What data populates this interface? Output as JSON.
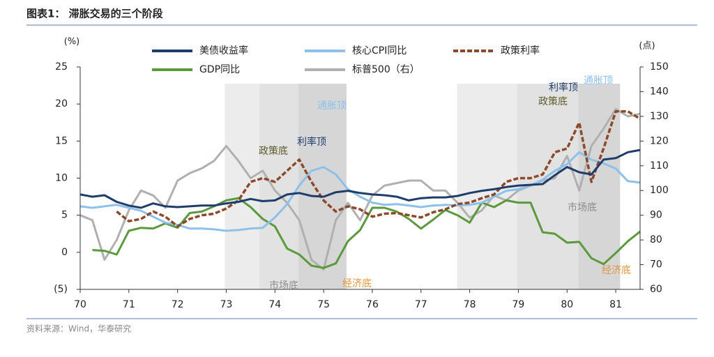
{
  "chart_data": {
    "type": "line",
    "title": "图表1：  滞胀交易的三个阶段",
    "source": "资料来源：Wind，华泰研究",
    "y_axis_label": "(%)",
    "y2_axis_label": "(点)",
    "x": [
      70,
      70.25,
      70.5,
      70.75,
      71,
      71.25,
      71.5,
      71.75,
      72,
      72.25,
      72.5,
      72.75,
      73,
      73.25,
      73.5,
      73.75,
      74,
      74.25,
      74.5,
      74.75,
      75,
      75.25,
      75.5,
      75.75,
      76,
      76.25,
      76.5,
      76.75,
      77,
      77.25,
      77.5,
      77.75,
      78,
      78.25,
      78.5,
      78.75,
      79,
      79.25,
      79.5,
      79.75,
      80,
      80.25,
      80.5,
      80.75,
      81,
      81.25,
      81.5
    ],
    "xlim": [
      70,
      81.5
    ],
    "xticks": [
      70,
      71,
      72,
      73,
      74,
      75,
      76,
      77,
      78,
      79,
      80,
      81
    ],
    "ylim": [
      -5,
      25
    ],
    "yticks": [
      {
        "value": -5,
        "label": "(5)"
      },
      0,
      5,
      10,
      15,
      20,
      25
    ],
    "y2lim": [
      60,
      150
    ],
    "y2ticks": [
      60,
      70,
      80,
      90,
      100,
      110,
      120,
      130,
      140,
      150
    ],
    "shaded_periods": [
      {
        "start": 72.97,
        "end": 73.68,
        "color": "#ececec"
      },
      {
        "start": 73.68,
        "end": 74.48,
        "color": "#e2e2e2"
      },
      {
        "start": 74.48,
        "end": 75.47,
        "color": "#d6d6d6"
      },
      {
        "start": 77.74,
        "end": 78.97,
        "color": "#ececec"
      },
      {
        "start": 78.97,
        "end": 80.23,
        "color": "#e2e2e2"
      },
      {
        "start": 80.23,
        "end": 81.09,
        "color": "#d6d6d6"
      }
    ],
    "annotations": [
      {
        "text": "政策底",
        "color": "#5e5a2c"
      },
      {
        "text": "利率顶",
        "color": "#1f3d6b"
      },
      {
        "text": "通胀顶",
        "color": "#8ec1ea"
      },
      {
        "text": "市场底",
        "color": "#8c8c8c"
      },
      {
        "text": "经济底",
        "color": "#e0973d"
      },
      {
        "text": "利率顶",
        "color": "#1f3d6b"
      },
      {
        "text": "通胀顶",
        "color": "#8ec1ea"
      },
      {
        "text": "政策底",
        "color": "#5e5a2c"
      },
      {
        "text": "市场底",
        "color": "#8c8c8c"
      },
      {
        "text": "经济底",
        "color": "#e0973d"
      }
    ],
    "series": [
      {
        "name": "美债收益率",
        "color": "#1f3d6b",
        "style": "solid",
        "values": [
          7.8,
          7.5,
          7.7,
          6.8,
          6.3,
          6.0,
          6.6,
          6.2,
          6.1,
          6.2,
          6.3,
          6.3,
          6.6,
          6.8,
          7.2,
          6.9,
          7.0,
          7.8,
          8.0,
          7.6,
          7.5,
          8.1,
          8.3,
          8.0,
          7.8,
          7.7,
          7.5,
          7.0,
          7.3,
          7.4,
          7.4,
          7.6,
          8.0,
          8.3,
          8.5,
          8.8,
          9.0,
          9.1,
          9.2,
          10.4,
          11.5,
          10.8,
          10.5,
          12.5,
          12.7,
          13.5,
          13.8
        ]
      },
      {
        "name": "核心CPI同比",
        "color": "#8ec1ea",
        "style": "solid",
        "values": [
          6.2,
          6.0,
          6.2,
          6.4,
          6.0,
          5.6,
          4.8,
          4.0,
          3.7,
          3.2,
          3.2,
          3.1,
          2.9,
          3.0,
          3.2,
          3.3,
          4.7,
          6.5,
          9.0,
          11.0,
          11.5,
          10.5,
          8.5,
          7.5,
          6.7,
          6.4,
          6.5,
          6.3,
          6.1,
          6.3,
          6.4,
          6.3,
          6.4,
          6.7,
          7.5,
          8.3,
          8.5,
          9.0,
          9.8,
          11.0,
          11.9,
          13.5,
          12.5,
          12.0,
          11.3,
          9.6,
          9.4
        ]
      },
      {
        "name": "政策利率",
        "color": "#8b4a2b",
        "style": "dashed",
        "values": [
          null,
          null,
          null,
          5.5,
          4.2,
          4.5,
          5.5,
          4.8,
          3.5,
          4.5,
          5.0,
          5.2,
          5.9,
          7.0,
          9.5,
          10.0,
          9.5,
          11.0,
          12.5,
          9.5,
          7.0,
          5.5,
          6.2,
          5.8,
          4.8,
          5.2,
          5.3,
          5.0,
          4.7,
          5.4,
          5.8,
          6.5,
          6.7,
          7.3,
          7.8,
          9.5,
          10.0,
          10.0,
          10.5,
          13.5,
          14.0,
          17.5,
          9.5,
          14.0,
          19.0,
          19.0,
          18.0
        ]
      },
      {
        "name": "GDP同比",
        "color": "#5a9a3c",
        "style": "solid",
        "values": [
          null,
          0.3,
          0.2,
          -0.3,
          2.9,
          3.3,
          3.2,
          3.9,
          3.3,
          5.3,
          5.5,
          6.2,
          7.0,
          7.3,
          6.1,
          4.5,
          3.5,
          0.5,
          -0.3,
          -1.8,
          -2.1,
          -1.5,
          1.5,
          3.0,
          6.0,
          6.0,
          5.5,
          4.5,
          3.2,
          4.4,
          5.7,
          5.0,
          4.0,
          6.7,
          6.1,
          7.0,
          6.7,
          6.7,
          2.7,
          2.5,
          1.3,
          1.4,
          -0.8,
          -1.6,
          -0.1,
          1.5,
          2.8
        ]
      },
      {
        "name": "标普500（右）",
        "color": "#b0b0b0",
        "style": "solid",
        "axis": "y2",
        "values": [
          90,
          88,
          72,
          80,
          92,
          100,
          98,
          93,
          104,
          107,
          109,
          112,
          118,
          112,
          105,
          108,
          100,
          95,
          88,
          72,
          68,
          88,
          95,
          88,
          98,
          102,
          103,
          104,
          104,
          100,
          100,
          95,
          89,
          92,
          98,
          96,
          100,
          102,
          104,
          105,
          114,
          100,
          118,
          125,
          133,
          130,
          131
        ]
      }
    ]
  }
}
